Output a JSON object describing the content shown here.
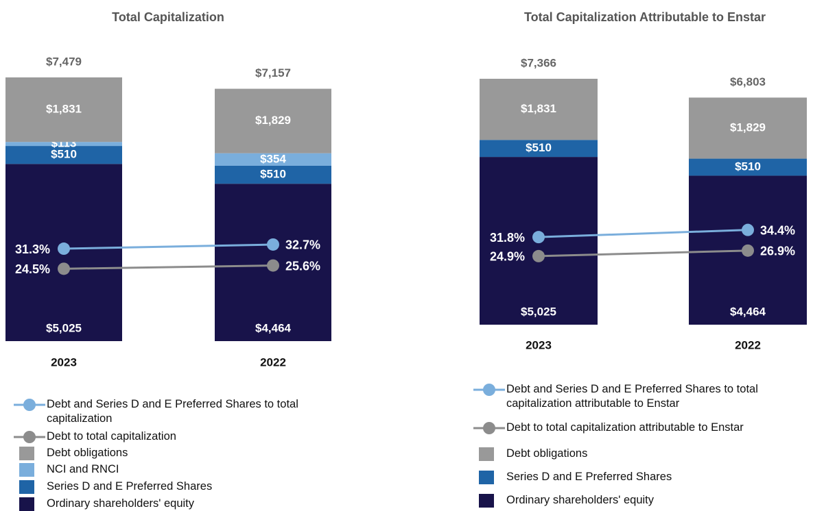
{
  "chart_data": [
    {
      "type": "bar",
      "stacked": true,
      "title": "Total Capitalization",
      "categories": [
        "2023",
        "2022"
      ],
      "totals": [
        7479,
        7157
      ],
      "total_labels": [
        "$7,479",
        "$7,157"
      ],
      "series": [
        {
          "name": "Debt and Series D and E Preferred Shares to total capitalization",
          "type": "line",
          "color": "#7aaedc",
          "values": [
            31.3,
            32.7
          ],
          "value_labels": [
            "31.3%",
            "32.7%"
          ]
        },
        {
          "name": "Debt to total capitalization",
          "type": "line",
          "color": "#8c8c8c",
          "values": [
            24.5,
            25.6
          ],
          "value_labels": [
            "24.5%",
            "25.6%"
          ]
        },
        {
          "name": "Debt obligations",
          "type": "bar",
          "color": "#999999",
          "values": [
            1831,
            1829
          ],
          "value_labels": [
            "$1,831",
            "$1,829"
          ]
        },
        {
          "name": "NCI and RNCI",
          "type": "bar",
          "color": "#7aaedc",
          "values": [
            113,
            354
          ],
          "value_labels": [
            "$113",
            "$354"
          ]
        },
        {
          "name": "Series D and E Preferred Shares",
          "type": "bar",
          "color": "#1f64a6",
          "values": [
            510,
            510
          ],
          "value_labels": [
            "$510",
            "$510"
          ]
        },
        {
          "name": "Ordinary shareholders' equity",
          "type": "bar",
          "color": "#18134a",
          "values": [
            5025,
            4464
          ],
          "value_labels": [
            "$5,025",
            "$4,464"
          ]
        }
      ]
    },
    {
      "type": "bar",
      "stacked": true,
      "title": "Total Capitalization Attributable to Enstar",
      "categories": [
        "2023",
        "2022"
      ],
      "totals": [
        7366,
        6803
      ],
      "total_labels": [
        "$7,366",
        "$6,803"
      ],
      "series": [
        {
          "name": "Debt and Series D and E Preferred Shares to total capitalization attributable to Enstar",
          "type": "line",
          "color": "#7aaedc",
          "values": [
            31.8,
            34.4
          ],
          "value_labels": [
            "31.8%",
            "34.4%"
          ]
        },
        {
          "name": "Debt to total capitalization attributable to Enstar",
          "type": "line",
          "color": "#8c8c8c",
          "values": [
            24.9,
            26.9
          ],
          "value_labels": [
            "24.9%",
            "26.9%"
          ]
        },
        {
          "name": "Debt obligations",
          "type": "bar",
          "color": "#999999",
          "values": [
            1831,
            1829
          ],
          "value_labels": [
            "$1,831",
            "$1,829"
          ]
        },
        {
          "name": "Series D and E Preferred Shares",
          "type": "bar",
          "color": "#1f64a6",
          "values": [
            510,
            510
          ],
          "value_labels": [
            "$510",
            "$510"
          ]
        },
        {
          "name": "Ordinary shareholders' equity",
          "type": "bar",
          "color": "#18134a",
          "values": [
            5025,
            4464
          ],
          "value_labels": [
            "$5,025",
            "$4,464"
          ]
        }
      ]
    }
  ]
}
